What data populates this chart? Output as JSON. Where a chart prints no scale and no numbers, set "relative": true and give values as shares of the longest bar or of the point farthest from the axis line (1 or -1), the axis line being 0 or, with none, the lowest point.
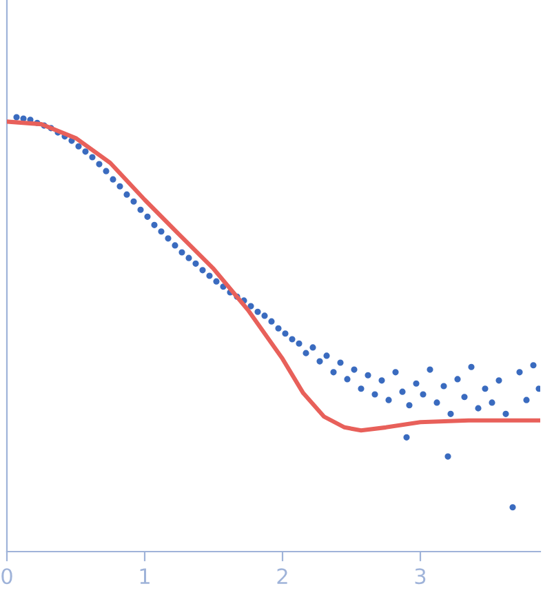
{
  "chart_data": {
    "type": "scatter",
    "relative": true,
    "xlim": [
      0,
      3.87
    ],
    "xticks": [
      0,
      1,
      2,
      3
    ],
    "tick_labels": "x",
    "marker": "circle",
    "series": [
      {
        "color": "#3a6bbf",
        "x": [
          0.07,
          0.12,
          0.17,
          0.22,
          0.27,
          0.32,
          0.37,
          0.42,
          0.47,
          0.52,
          0.57,
          0.62,
          0.67,
          0.72,
          0.77,
          0.82,
          0.87,
          0.92,
          0.97,
          1.02,
          1.07,
          1.12,
          1.17,
          1.22,
          1.27,
          1.32,
          1.37,
          1.42,
          1.47,
          1.52,
          1.57,
          1.62,
          1.67,
          1.72,
          1.77,
          1.82,
          1.87,
          1.92,
          1.97,
          2.02,
          2.07,
          2.12,
          2.17,
          2.22,
          2.27,
          2.32,
          2.37,
          2.42,
          2.47,
          2.52,
          2.57,
          2.62,
          2.67,
          2.72,
          2.77,
          2.82,
          2.87,
          2.9,
          2.92,
          2.97,
          3.02,
          3.07,
          3.12,
          3.17,
          3.2,
          3.22,
          3.27,
          3.32,
          3.37,
          3.42,
          3.47,
          3.52,
          3.57,
          3.62,
          3.67,
          3.72,
          3.77,
          3.82,
          3.86
        ],
        "values": [
          1.0,
          0.997,
          0.994,
          0.987,
          0.981,
          0.975,
          0.965,
          0.956,
          0.946,
          0.933,
          0.921,
          0.908,
          0.892,
          0.876,
          0.857,
          0.841,
          0.822,
          0.806,
          0.787,
          0.771,
          0.752,
          0.737,
          0.721,
          0.705,
          0.689,
          0.676,
          0.663,
          0.648,
          0.635,
          0.622,
          0.61,
          0.597,
          0.587,
          0.578,
          0.565,
          0.552,
          0.543,
          0.53,
          0.514,
          0.502,
          0.489,
          0.479,
          0.457,
          0.47,
          0.438,
          0.451,
          0.413,
          0.435,
          0.397,
          0.419,
          0.375,
          0.406,
          0.362,
          0.394,
          0.349,
          0.413,
          0.368,
          0.263,
          0.337,
          0.387,
          0.362,
          0.419,
          0.343,
          0.381,
          0.219,
          0.317,
          0.397,
          0.356,
          0.425,
          0.33,
          0.375,
          0.343,
          0.394,
          0.317,
          0.102,
          0.413,
          0.349,
          0.429,
          0.375
        ]
      },
      {
        "type": "line",
        "color": "#e8605a",
        "marker": "none",
        "line_style": "solid",
        "x": [
          0,
          0.25,
          0.5,
          0.75,
          1.0,
          1.25,
          1.5,
          1.75,
          2.0,
          2.15,
          2.3,
          2.45,
          2.57,
          2.75,
          3.0,
          3.35,
          3.87
        ],
        "values": [
          0.99,
          0.984,
          0.952,
          0.895,
          0.81,
          0.73,
          0.651,
          0.556,
          0.444,
          0.365,
          0.311,
          0.286,
          0.279,
          0.286,
          0.298,
          0.302,
          0.302
        ]
      }
    ]
  }
}
